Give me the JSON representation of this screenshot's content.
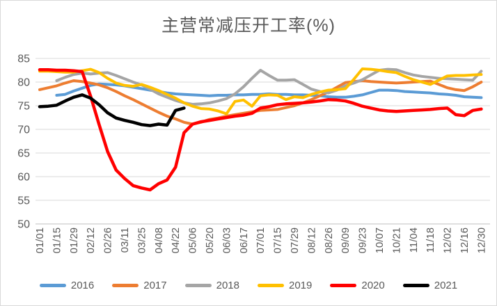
{
  "title": "主营常减压开工率(%)",
  "chart_data": {
    "type": "line",
    "title": "主营常减压开工率(%)",
    "x_labels": [
      "01/01",
      "01/15",
      "01/29",
      "02/12",
      "02/26",
      "03/11",
      "03/25",
      "04/08",
      "04/22",
      "05/06",
      "05/20",
      "06/03",
      "06/17",
      "07/01",
      "07/15",
      "07/29",
      "08/12",
      "08/26",
      "09/09",
      "09/23",
      "10/07",
      "10/21",
      "11/04",
      "11/18",
      "12/02",
      "12/16",
      "12/30"
    ],
    "x_label_step": 2,
    "points_per_series": 53,
    "ylim": [
      50,
      85
    ],
    "y_ticks": [
      50,
      55,
      60,
      65,
      70,
      75,
      80,
      85
    ],
    "grid": true,
    "legend_position": "bottom",
    "axis_text_color": "#595959",
    "gridline_color": "#D9D9D9",
    "axis_line_color": "#BFBFBF",
    "series": [
      {
        "name": "2016",
        "color": "#5B9BD5",
        "start_index": 2,
        "line_width": 4,
        "values": [
          77.2,
          77.4,
          78.1,
          78.7,
          79.3,
          79.6,
          79.5,
          79.4,
          79.2,
          78.9,
          78.6,
          78.3,
          78.0,
          77.7,
          77.5,
          77.4,
          77.3,
          77.2,
          77.1,
          77.2,
          77.2,
          77.3,
          77.3,
          77.4,
          77.4,
          77.5,
          77.4,
          77.4,
          77.3,
          77.3,
          77.2,
          77.1,
          76.9,
          76.8,
          76.8,
          77.0,
          77.3,
          77.8,
          78.3,
          78.3,
          78.2,
          78.0,
          77.9,
          77.8,
          77.7,
          77.5,
          77.4,
          77.2,
          76.9,
          76.8,
          76.7
        ]
      },
      {
        "name": "2017",
        "color": "#ED7D31",
        "start_index": 0,
        "line_width": 4,
        "values": [
          78.4,
          78.8,
          79.2,
          79.8,
          80.3,
          80.1,
          79.8,
          79.4,
          78.8,
          78.0,
          77.1,
          76.3,
          75.4,
          74.5,
          73.6,
          72.8,
          72.2,
          71.5,
          71.1,
          71.5,
          72.1,
          72.4,
          72.8,
          73.1,
          73.4,
          73.7,
          74.0,
          74.1,
          74.2,
          74.6,
          75.0,
          75.6,
          76.3,
          77.1,
          77.9,
          78.9,
          79.9,
          80.1,
          80.3,
          80.1,
          80.0,
          79.9,
          79.8,
          79.9,
          80.0,
          80.1,
          80.2,
          79.5,
          78.8,
          78.4,
          78.2,
          79.0,
          80.0
        ]
      },
      {
        "name": "2018",
        "color": "#A5A5A5",
        "start_index": 2,
        "line_width": 4,
        "values": [
          80.3,
          81.0,
          81.6,
          81.9,
          81.7,
          81.9,
          82.0,
          81.4,
          80.7,
          80.0,
          79.4,
          78.5,
          77.5,
          76.8,
          76.1,
          75.6,
          75.3,
          75.4,
          75.6,
          76.0,
          76.5,
          77.5,
          79.0,
          80.8,
          82.5,
          81.4,
          80.4,
          80.4,
          80.5,
          79.5,
          78.5,
          78.0,
          77.7,
          78.3,
          79.2,
          79.8,
          80.5,
          81.5,
          82.5,
          82.7,
          82.6,
          82.0,
          81.5,
          81.2,
          81.0,
          80.8,
          80.7,
          80.6,
          80.5,
          80.4,
          82.3
        ]
      },
      {
        "name": "2019",
        "color": "#FFC000",
        "start_index": 0,
        "line_width": 4,
        "values": [
          82.3,
          82.3,
          82.2,
          82.1,
          82.1,
          82.4,
          82.7,
          82.0,
          80.8,
          79.8,
          79.3,
          79.1,
          79.5,
          78.9,
          78.2,
          77.4,
          76.6,
          75.6,
          74.9,
          74.4,
          74.3,
          73.9,
          73.3,
          75.9,
          76.2,
          74.9,
          77.1,
          77.3,
          77.2,
          76.3,
          76.9,
          76.7,
          77.4,
          77.9,
          78.3,
          78.4,
          78.6,
          80.6,
          82.8,
          82.7,
          82.5,
          82.2,
          82.0,
          81.2,
          80.5,
          80.0,
          79.5,
          80.4,
          81.3,
          81.4,
          81.4,
          81.5,
          81.6
        ]
      },
      {
        "name": "2020",
        "color": "#FF0000",
        "start_index": 0,
        "line_width": 4.5,
        "values": [
          82.6,
          82.6,
          82.5,
          82.5,
          82.4,
          82.2,
          77.0,
          71.0,
          65.3,
          61.4,
          59.6,
          58.1,
          57.6,
          57.2,
          58.5,
          59.3,
          62.0,
          69.3,
          71.1,
          71.6,
          71.9,
          72.2,
          72.5,
          72.8,
          73.0,
          73.4,
          74.5,
          74.8,
          75.2,
          75.4,
          75.5,
          75.6,
          75.8,
          76.0,
          76.3,
          76.2,
          76.0,
          75.5,
          74.9,
          74.5,
          74.1,
          73.9,
          73.8,
          73.9,
          74.0,
          74.1,
          74.2,
          74.4,
          74.5,
          73.1,
          72.9,
          74.0,
          74.3
        ]
      },
      {
        "name": "2021",
        "color": "#000000",
        "start_index": 0,
        "line_width": 4.5,
        "values": [
          74.8,
          74.9,
          75.1,
          76.0,
          76.8,
          77.3,
          76.6,
          75.2,
          73.5,
          72.4,
          71.9,
          71.5,
          71.0,
          70.8,
          71.1,
          70.9,
          74.0,
          74.5
        ]
      }
    ]
  }
}
